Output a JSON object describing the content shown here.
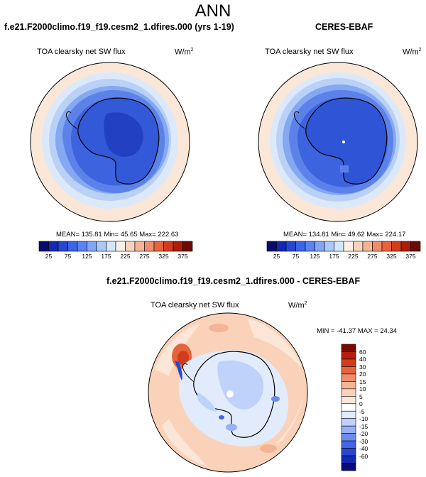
{
  "page": {
    "title": "ANN"
  },
  "panels": [
    {
      "title": "f.e21.F2000climo.f19_f19.cesm2_1.dfires.000 (yrs 1-19)",
      "variable": "TOA clearsky net SW flux",
      "units_base": "W/m",
      "units_exp": "2",
      "stats_text": "MEAN= 135.81  Min=  45.65  Max= 222.63"
    },
    {
      "title": "CERES-EBAF",
      "variable": "TOA clearsky net SW flux",
      "units_base": "W/m",
      "units_exp": "2",
      "stats_text": "MEAN= 134.81  Min=  49.62  Max= 224.17"
    },
    {
      "title": "f.e21.F2000climo.f19_f19.cesm2_1.dfires.000 - CERES-EBAF",
      "variable": "TOA clearsky net SW flux",
      "units_base": "W/m",
      "units_exp": "2",
      "stats_text": "MIN = -41.37 MAX =  24.34"
    }
  ],
  "colorbar_abs": {
    "colors": [
      "#0a0a6e",
      "#1428b4",
      "#2846d2",
      "#3c64e6",
      "#5a82f0",
      "#82a5f5",
      "#aac8fa",
      "#d2e6fc",
      "#fcf0e6",
      "#fad2be",
      "#f5b496",
      "#f08c6e",
      "#e6643c",
      "#d23c1e",
      "#aa1e0a",
      "#6e0a00"
    ],
    "tick_labels": [
      "25",
      "75",
      "125",
      "175",
      "225",
      "275",
      "325",
      "375"
    ]
  },
  "colorbar_diff": {
    "colors": [
      "#0a0a78",
      "#1428b4",
      "#2846d2",
      "#4664e6",
      "#6e8cf0",
      "#96aff5",
      "#bed2fa",
      "#e1ebfc",
      "#ffffff",
      "#fce6d7",
      "#fad2b9",
      "#f5b496",
      "#f08c6e",
      "#e6643c",
      "#d23c1e",
      "#b41e0a",
      "#7a0a00"
    ],
    "tick_labels": [
      "60",
      "40",
      "30",
      "20",
      "15",
      "10",
      "5",
      "0",
      "-5",
      "-10",
      "-15",
      "-20",
      "-30",
      "-40",
      "-60"
    ]
  }
}
